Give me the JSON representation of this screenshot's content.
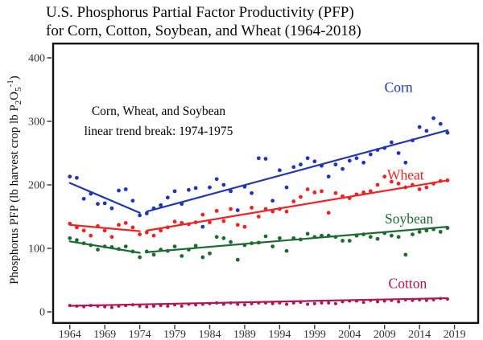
{
  "figure": {
    "title_line1": "U.S. Phosphorus Partial Factor Productivity (PFP)",
    "title_line2": "for Corn, Cotton, Soybean, and Wheat (1964-2018)",
    "y_axis_label": {
      "prefix": "Phosphorus PFP (lb harvest crop lb P",
      "sub_2": "2",
      "element_o": "O",
      "sub_5": "5",
      "sup_exp": "-1",
      "close_paren": ")"
    },
    "annotation_line1": "Corn, Wheat, and Soybean",
    "annotation_line2": "linear trend break: 1974-1975"
  },
  "chart_data": {
    "type": "scatter",
    "title": "U.S. Phosphorus Partial Factor Productivity (PFP) for Corn, Cotton, Soybean, and Wheat (1964-2018)",
    "xlabel": "",
    "ylabel": "Phosphorus PFP (lb harvest crop lb P2O5-1)",
    "annotation": "Corn, Wheat, and Soybean linear trend break: 1974-1975",
    "grid": false,
    "legend_position": "direct-labels-right",
    "x_ticks": [
      1964,
      1969,
      1974,
      1979,
      1984,
      1989,
      1994,
      1999,
      2004,
      2009,
      2014,
      2019
    ],
    "y_ticks": [
      0,
      100,
      200,
      300,
      400
    ],
    "x_range": [
      1961.5,
      2022.5
    ],
    "y_range": [
      -19,
      424
    ],
    "years_start": 1964,
    "series": [
      {
        "name": "Corn",
        "color": "#2235b2",
        "label_pos": [
          2011,
          354
        ],
        "values": [
          213,
          211,
          178,
          186,
          170,
          171,
          163,
          191,
          193,
          175,
          152,
          155,
          163,
          168,
          180,
          190,
          170,
          192,
          195,
          134,
          196,
          209,
          200,
          190,
          160,
          197,
          187,
          242,
          241,
          175,
          223,
          196,
          228,
          232,
          242,
          237,
          230,
          213,
          232,
          225,
          238,
          242,
          235,
          248,
          255,
          258,
          267,
          250,
          235,
          270,
          291,
          285,
          305,
          296,
          282
        ],
        "trend_segments": [
          [
            [
              1964,
              203
            ],
            [
              1974,
              156
            ]
          ],
          [
            [
              1975,
              158
            ],
            [
              2018,
              286
            ]
          ]
        ]
      },
      {
        "name": "Wheat",
        "color": "#ee2424",
        "label_pos": [
          2012,
          216
        ],
        "values": [
          139,
          133,
          128,
          120,
          135,
          128,
          118,
          137,
          140,
          133,
          122,
          125,
          120,
          128,
          133,
          142,
          140,
          138,
          141,
          153,
          141,
          159,
          143,
          162,
          137,
          134,
          164,
          150,
          162,
          158,
          162,
          158,
          174,
          181,
          193,
          188,
          190,
          156,
          187,
          182,
          179,
          185,
          188,
          190,
          200,
          213,
          205,
          202,
          196,
          200,
          193,
          196,
          202,
          206,
          207
        ],
        "trend_segments": [
          [
            [
              1964,
              137
            ],
            [
              1974,
              127
            ]
          ],
          [
            [
              1975,
              128
            ],
            [
              2018,
              207
            ]
          ]
        ]
      },
      {
        "name": "Soybean",
        "color": "#1d6b31",
        "label_pos": [
          2012.5,
          147
        ],
        "values": [
          116,
          113,
          108,
          105,
          98,
          103,
          102,
          99,
          103,
          95,
          86,
          95,
          90,
          98,
          96,
          103,
          88,
          98,
          104,
          86,
          92,
          118,
          116,
          110,
          82,
          105,
          108,
          109,
          119,
          103,
          116,
          96,
          116,
          114,
          123,
          118,
          120,
          120,
          118,
          112,
          112,
          120,
          122,
          118,
          115,
          124,
          120,
          118,
          90,
          122,
          126,
          128,
          130,
          126,
          132
        ],
        "trend_segments": [
          [
            [
              1964,
              111
            ],
            [
              1974,
              93
            ]
          ],
          [
            [
              1975,
              94
            ],
            [
              2018,
              134
            ]
          ]
        ]
      },
      {
        "name": "Cotton",
        "color": "#b2154f",
        "label_pos": [
          2012.3,
          45
        ],
        "values": [
          10,
          9,
          8,
          10,
          9,
          8,
          7,
          9,
          10,
          11,
          9,
          8,
          9,
          10,
          9,
          11,
          9,
          12,
          11,
          12,
          13,
          14,
          12,
          14,
          12,
          11,
          13,
          14,
          14,
          13,
          14,
          12,
          14,
          15,
          12,
          13,
          14,
          14,
          13,
          16,
          17,
          17,
          15,
          18,
          16,
          17,
          18,
          16,
          19,
          18,
          19,
          18,
          19,
          21,
          20
        ],
        "trend_segments": [
          [
            [
              1964,
              9.5
            ],
            [
              2018,
              21.5
            ]
          ]
        ]
      }
    ]
  }
}
